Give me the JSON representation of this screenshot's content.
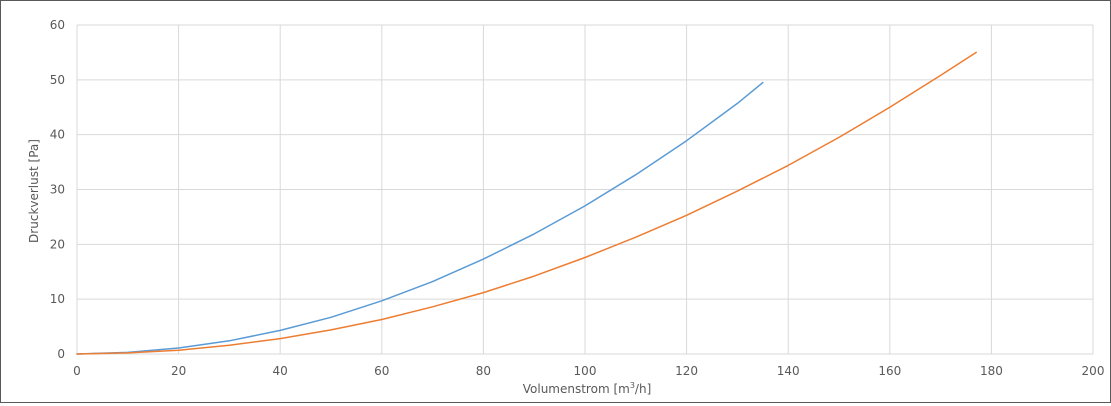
{
  "chart_data": {
    "type": "line",
    "title": "",
    "xlabel_main": "Volumenstrom [m",
    "xlabel_sup": "3",
    "xlabel_tail": "/h]",
    "ylabel": "Druckverlust [Pa]",
    "xlim": [
      0,
      200
    ],
    "ylim": [
      0,
      60
    ],
    "x_ticks": [
      "0",
      "20",
      "40",
      "60",
      "80",
      "100",
      "120",
      "140",
      "160",
      "180",
      "200"
    ],
    "y_ticks": [
      "0",
      "10",
      "20",
      "30",
      "40",
      "50",
      "60"
    ],
    "grid": true,
    "legend": "none",
    "series": [
      {
        "color": "#5b9bd5",
        "x": [
          0,
          10,
          20,
          30,
          40,
          50,
          60,
          70,
          80,
          90,
          100,
          110,
          120,
          130,
          135
        ],
        "y": [
          0,
          0.3,
          1.1,
          2.4,
          4.3,
          6.7,
          9.7,
          13.2,
          17.3,
          21.9,
          27.0,
          32.7,
          38.9,
          45.7,
          49.5
        ]
      },
      {
        "color": "#ed7d31",
        "x": [
          0,
          10,
          20,
          30,
          40,
          50,
          60,
          70,
          80,
          90,
          100,
          110,
          120,
          130,
          140,
          150,
          160,
          170,
          177
        ],
        "y": [
          0,
          0.2,
          0.7,
          1.6,
          2.8,
          4.4,
          6.3,
          8.6,
          11.2,
          14.2,
          17.6,
          21.3,
          25.3,
          29.7,
          34.4,
          39.5,
          45.0,
          50.8,
          55.0
        ]
      }
    ]
  }
}
